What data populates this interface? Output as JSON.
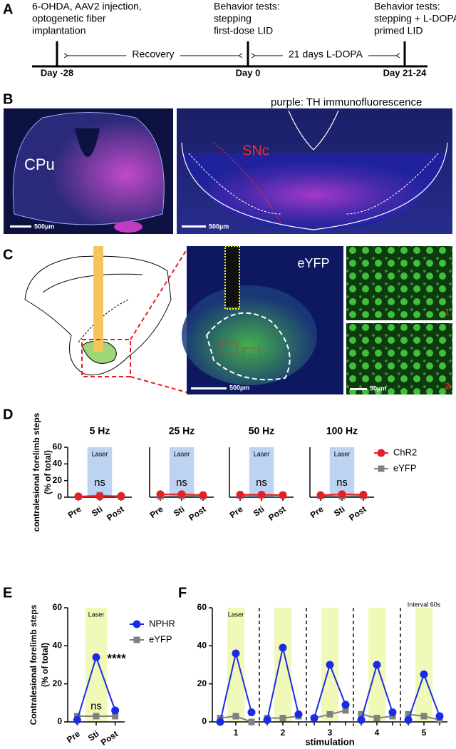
{
  "panels": [
    "A",
    "B",
    "C",
    "D",
    "E",
    "F"
  ],
  "timeline": {
    "events": [
      {
        "day": "Day -28",
        "lines": [
          "6-OHDA, AAV2 injection,",
          "optogenetic fiber",
          "implantation"
        ]
      },
      {
        "day": "Day 0",
        "lines": [
          "Behavior tests:",
          "stepping",
          "first-dose LID"
        ]
      },
      {
        "day": "Day 21-24",
        "lines": [
          "Behavior tests:",
          "stepping + L-DOPA",
          "primed LID"
        ]
      }
    ],
    "intervals": [
      "Recovery",
      "21 days L-DOPA"
    ]
  },
  "panel_b": {
    "caption": "purple: TH immunofluorescence",
    "left": {
      "region": "CPu",
      "scale_bar": "500µm"
    },
    "right": {
      "region": "SNc",
      "scale_bar": "500µm"
    }
  },
  "panel_c": {
    "image_label": "eYFP",
    "scale_bar": "500µm",
    "insets": [
      {
        "number": "1"
      },
      {
        "number": "2",
        "scale_bar": "50µm"
      }
    ]
  },
  "chart_data": [
    {
      "type": "line",
      "title": "5 Hz",
      "y_label": [
        "contralesional forelimb steps",
        "(% of total)"
      ],
      "categories": [
        "Pre",
        "Sti",
        "Post"
      ],
      "ylim": [
        0,
        60
      ],
      "yticks": [
        0,
        20,
        40,
        60
      ],
      "band_label": "Laser",
      "annotations": [
        "ns"
      ],
      "series": [
        {
          "name": "ChR2",
          "color": "#e41f26",
          "marker": "circle",
          "values": [
            1,
            1,
            1.5
          ]
        },
        {
          "name": "eYFP",
          "color": "#808080",
          "marker": "square",
          "values": [
            0.5,
            2.5,
            0.5
          ]
        }
      ]
    },
    {
      "type": "line",
      "title": "25 Hz",
      "categories": [
        "Pre",
        "Sti",
        "Post"
      ],
      "ylim": [
        0,
        60
      ],
      "band_label": "Laser",
      "annotations": [
        "ns"
      ],
      "series": [
        {
          "name": "ChR2",
          "color": "#e41f26",
          "marker": "circle",
          "values": [
            3.5,
            3.5,
            2.5
          ]
        },
        {
          "name": "eYFP",
          "color": "#808080",
          "marker": "square",
          "values": [
            1,
            1.5,
            1
          ]
        }
      ]
    },
    {
      "type": "line",
      "title": "50 Hz",
      "categories": [
        "Pre",
        "Sti",
        "Post"
      ],
      "ylim": [
        0,
        60
      ],
      "band_label": "Laser",
      "annotations": [
        "ns"
      ],
      "series": [
        {
          "name": "ChR2",
          "color": "#e41f26",
          "marker": "circle",
          "values": [
            3,
            3,
            2.5
          ]
        },
        {
          "name": "eYFP",
          "color": "#808080",
          "marker": "square",
          "values": [
            2,
            2.5,
            2.5
          ]
        }
      ]
    },
    {
      "type": "line",
      "title": "100 Hz",
      "categories": [
        "Pre",
        "Sti",
        "Post"
      ],
      "ylim": [
        0,
        60
      ],
      "band_label": "Laser",
      "annotations": [
        "ns"
      ],
      "legend": "right",
      "series": [
        {
          "name": "ChR2",
          "color": "#e41f26",
          "marker": "circle",
          "values": [
            2.5,
            3.5,
            3
          ]
        },
        {
          "name": "eYFP",
          "color": "#808080",
          "marker": "square",
          "values": [
            1.5,
            1,
            1.5
          ]
        }
      ]
    },
    {
      "type": "line",
      "y_label": [
        "Contralesional forelimb steps",
        "(% of total)"
      ],
      "categories": [
        "Pre",
        "Sti",
        "Post"
      ],
      "ylim": [
        0,
        60
      ],
      "yticks": [
        0,
        20,
        40,
        60
      ],
      "band_label": "Laser",
      "annotations": [
        "****",
        "ns"
      ],
      "legend": "right",
      "series": [
        {
          "name": "NPHR",
          "color": "#1a2be6",
          "marker": "circle",
          "values": [
            1,
            34,
            6
          ]
        },
        {
          "name": "eYFP",
          "color": "#808080",
          "marker": "square",
          "values": [
            3,
            3,
            3
          ]
        }
      ]
    },
    {
      "type": "line",
      "x_label": "stimulation",
      "categories": [
        null,
        "1",
        null,
        null,
        "2",
        null,
        null,
        "3",
        null,
        null,
        "4",
        null,
        null,
        "5",
        null
      ],
      "ylim": [
        0,
        60
      ],
      "yticks": [
        0,
        20,
        40,
        60
      ],
      "band_label": "Laser",
      "annotations": [
        "Interval 60s"
      ],
      "series": [
        {
          "name": "NPHR",
          "color": "#1a2be6",
          "marker": "circle",
          "values": [
            0,
            36,
            5,
            1,
            39,
            4,
            2,
            30,
            9,
            1,
            30,
            5,
            1,
            25,
            3
          ]
        },
        {
          "name": "eYFP",
          "color": "#808080",
          "marker": "square",
          "values": [
            2,
            3,
            0,
            2,
            2,
            3,
            2,
            4,
            6,
            4,
            2,
            3,
            4,
            3,
            1
          ]
        }
      ]
    }
  ]
}
